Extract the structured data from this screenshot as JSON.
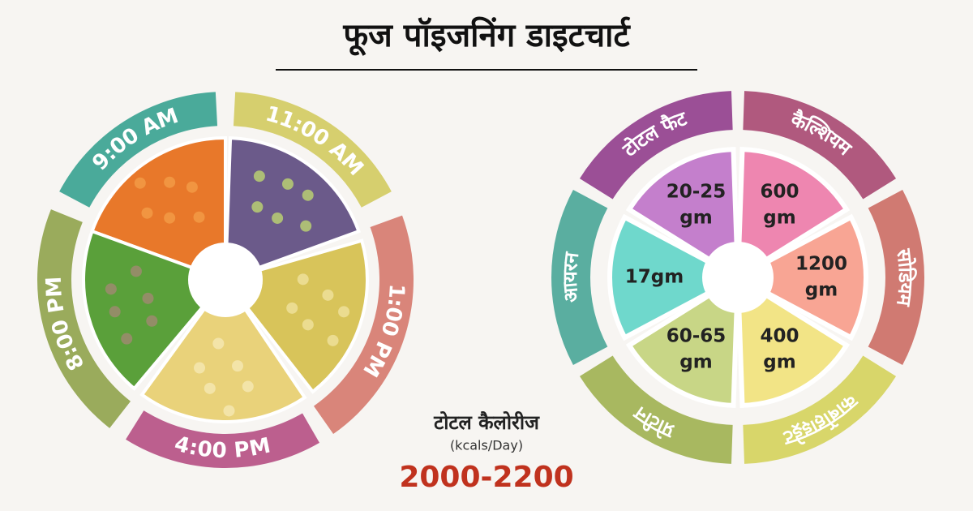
{
  "title": "फूज पॉइजनिंग डाइटचार्ट",
  "meal_times": [
    "9:00 AM",
    "11:00 AM",
    "1:00 PM",
    "4:00 PM",
    "8:00 PM"
  ],
  "nutrients": [
    {
      "name": "टोटल फैट",
      "value": [
        "20-25",
        "gm"
      ]
    },
    {
      "name": "कैल्शियम",
      "value": [
        "600",
        "gm"
      ]
    },
    {
      "name": "सोडियम",
      "value": [
        "1200",
        "gm"
      ]
    },
    {
      "name": "कार्बोहाइड्रेट",
      "value": [
        "400",
        "gm"
      ]
    },
    {
      "name": "प्रोटीन",
      "value": [
        "60-65",
        "gm"
      ]
    },
    {
      "name": "आयरन",
      "value": [
        "17gm"
      ]
    }
  ],
  "total": {
    "label": "टोटल कैलोरीज",
    "unit": "(kcals/Day)",
    "value": "2000-2200"
  }
}
